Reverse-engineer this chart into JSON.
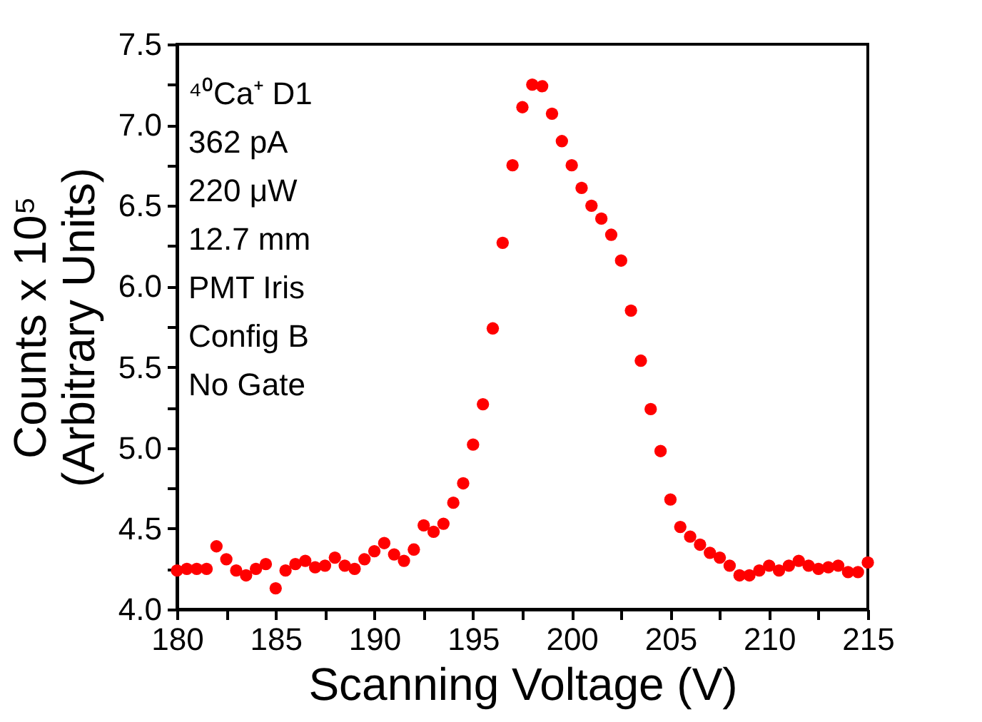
{
  "chart_data": {
    "type": "scatter",
    "xlabel": "Scanning Voltage (V)",
    "ylabel": "Counts x 10⁵\n(Arbitrary Units)",
    "annotations": [
      "⁴⁰Ca⁺ D1",
      "362 pA",
      "220 μW",
      "12.7 mm",
      "   PMT Iris",
      "Config B",
      "No Gate"
    ],
    "xlim": [
      180,
      215
    ],
    "xticks": [
      180,
      {
        "value": 182.5,
        "label": null
      },
      185,
      {
        "value": 187.5,
        "label": null
      },
      190,
      {
        "value": 192.5,
        "label": null
      },
      195,
      {
        "value": 197.5,
        "label": null
      },
      200,
      {
        "value": 202.5,
        "label": null
      },
      205,
      {
        "value": 207.5,
        "label": null
      },
      210,
      {
        "value": 212.5,
        "label": null
      },
      215
    ],
    "ylim": [
      4.0,
      7.5
    ],
    "yticks": [
      {
        "value": 4,
        "label": "4.0"
      },
      {
        "value": 4.25,
        "label": null
      },
      {
        "value": 4.5,
        "label": "4.5"
      },
      {
        "value": 4.75,
        "label": null
      },
      {
        "value": 5,
        "label": "5.0"
      },
      {
        "value": 5.25,
        "label": null
      },
      {
        "value": 5.5,
        "label": "5.5"
      },
      {
        "value": 5.75,
        "label": null
      },
      {
        "value": 6,
        "label": "6.0"
      },
      {
        "value": 6.25,
        "label": null
      },
      {
        "value": 6.5,
        "label": "6.5"
      },
      {
        "value": 6.75,
        "label": null
      },
      {
        "value": 7,
        "label": "7.0"
      },
      {
        "value": 7.25,
        "label": null
      },
      {
        "value": 7.5,
        "label": "7.5"
      }
    ],
    "grid": false,
    "marker": "circle",
    "series": [
      {
        "color": "#ff0000",
        "x": [
          180,
          180.5,
          181,
          181.5,
          182,
          182.5,
          183,
          183.5,
          184,
          184.5,
          185,
          185.5,
          186,
          186.5,
          187,
          187.5,
          188,
          188.5,
          189,
          189.5,
          190,
          190.5,
          191,
          191.5,
          192,
          192.5,
          193,
          193.5,
          194,
          194.5,
          195,
          195.5,
          196,
          196.5,
          197,
          197.5,
          198,
          198.5,
          199,
          199.5,
          200,
          200.5,
          201,
          201.5,
          202,
          202.5,
          203,
          203.5,
          204,
          204.5,
          205,
          205.5,
          206,
          206.5,
          207,
          207.5,
          208,
          208.5,
          209,
          209.5,
          210,
          210.5,
          211,
          211.5,
          212,
          212.5,
          213,
          213.5,
          214,
          214.5,
          215
        ],
        "values": [
          4.24,
          4.25,
          4.25,
          4.25,
          4.39,
          4.31,
          4.24,
          4.21,
          4.25,
          4.28,
          4.13,
          4.24,
          4.28,
          4.3,
          4.26,
          4.27,
          4.32,
          4.27,
          4.25,
          4.31,
          4.36,
          4.41,
          4.34,
          4.3,
          4.37,
          4.52,
          4.48,
          4.53,
          4.66,
          4.78,
          5.02,
          5.27,
          5.74,
          6.27,
          6.75,
          7.11,
          7.25,
          7.24,
          7.07,
          6.9,
          6.75,
          6.61,
          6.5,
          6.42,
          6.32,
          6.16,
          5.85,
          5.54,
          5.24,
          4.98,
          4.68,
          4.51,
          4.45,
          4.4,
          4.35,
          4.32,
          4.27,
          4.21,
          4.21,
          4.24,
          4.27,
          4.24,
          4.27,
          4.3,
          4.27,
          4.25,
          4.26,
          4.27,
          4.23,
          4.23,
          4.29
        ]
      }
    ]
  }
}
